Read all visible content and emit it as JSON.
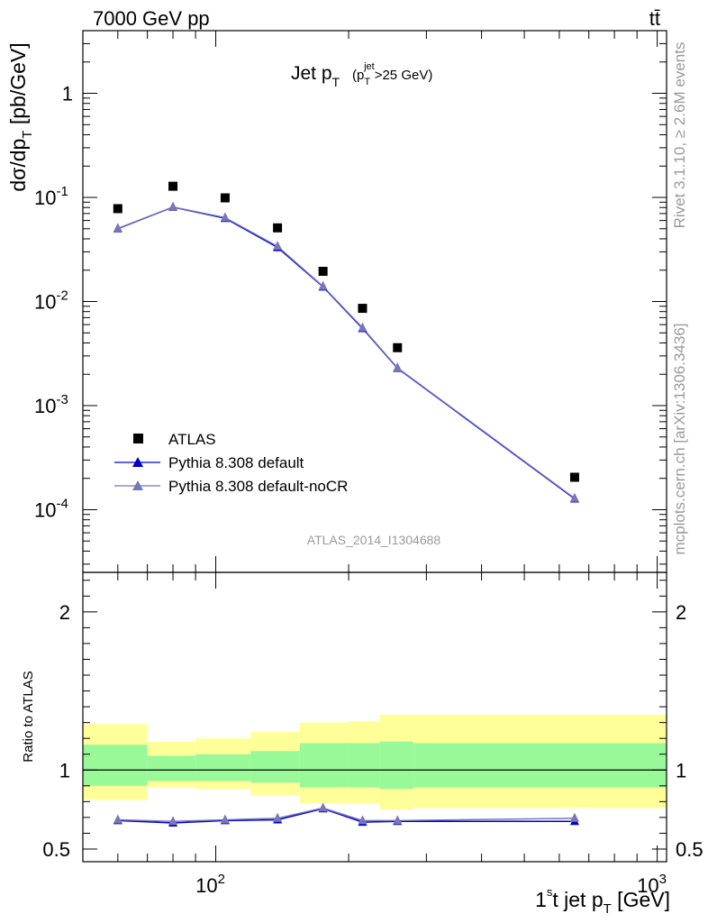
{
  "header": {
    "energy": "7000 GeV pp",
    "process": "tt̄"
  },
  "side_labels": {
    "rivet": "Rivet 3.1.10, ≥ 2.6M events",
    "mcplots": "mcplots.cern.ch [arXiv:1306.3436]"
  },
  "chart_data": [
    {
      "type": "scatter",
      "title": "Jet p_T (p_T^jet>25 GeV)",
      "watermark": "ATLAS_2014_I1304688",
      "ylabel": "dσ/dp_T [pb/GeV]",
      "xscale": "log",
      "yscale": "log",
      "xlim": [
        50,
        1050
      ],
      "ylim": [
        2.5e-05,
        4
      ],
      "x_tick_labels": [
        "10^2",
        "10^3"
      ],
      "y_tick_labels": [
        "10^-4",
        "10^-3",
        "10^-2",
        "10^-1",
        "1"
      ],
      "legend_position": "lower-left",
      "x": [
        60,
        80,
        105,
        138,
        175,
        215,
        258,
        650
      ],
      "series": [
        {
          "name": "ATLAS",
          "marker": "square",
          "color": "#000000",
          "values": [
            0.078,
            0.128,
            0.099,
            0.051,
            0.0195,
            0.0086,
            0.0036,
            0.000205
          ]
        },
        {
          "name": "Pythia 8.308 default",
          "marker": "triangle",
          "color": "#0000cc",
          "values": [
            0.05,
            0.0805,
            0.063,
            0.033,
            0.0138,
            0.0055,
            0.00228,
            0.000127
          ]
        },
        {
          "name": "Pythia 8.308 default-noCR",
          "marker": "triangle",
          "color": "#7777bb",
          "values": [
            0.0505,
            0.081,
            0.064,
            0.034,
            0.014,
            0.0056,
            0.00231,
            0.000129
          ]
        }
      ]
    },
    {
      "type": "line",
      "ylabel": "Ratio to ATLAS",
      "xlabel": "1st jet p_T [GeV]",
      "xscale": "log",
      "xlim": [
        50,
        1050
      ],
      "ylim": [
        0.42,
        2.25
      ],
      "y_tick_labels": [
        "0.5",
        "1",
        "2"
      ],
      "bin_edges": [
        50,
        70,
        90,
        120,
        155,
        200,
        235,
        280,
        1050
      ],
      "bands": {
        "yellow": [
          [
            0.81,
            1.29
          ],
          [
            0.89,
            1.18
          ],
          [
            0.88,
            1.2
          ],
          [
            0.84,
            1.24
          ],
          [
            0.79,
            1.3
          ],
          [
            0.79,
            1.31
          ],
          [
            0.75,
            1.35
          ],
          [
            0.76,
            1.35
          ]
        ],
        "green": [
          [
            0.9,
            1.16
          ],
          [
            0.93,
            1.09
          ],
          [
            0.93,
            1.1
          ],
          [
            0.92,
            1.12
          ],
          [
            0.89,
            1.17
          ],
          [
            0.89,
            1.17
          ],
          [
            0.88,
            1.18
          ],
          [
            0.89,
            1.17
          ]
        ]
      },
      "x": [
        60,
        80,
        105,
        138,
        175,
        215,
        258,
        650
      ],
      "series": [
        {
          "name": "Pythia 8.308 default",
          "color": "#0000cc",
          "values": [
            0.68,
            0.665,
            0.68,
            0.685,
            0.755,
            0.67,
            0.675,
            0.675
          ]
        },
        {
          "name": "Pythia 8.308 default-noCR",
          "color": "#7777bb",
          "values": [
            0.685,
            0.675,
            0.685,
            0.695,
            0.76,
            0.68,
            0.68,
            0.695
          ]
        }
      ]
    }
  ]
}
